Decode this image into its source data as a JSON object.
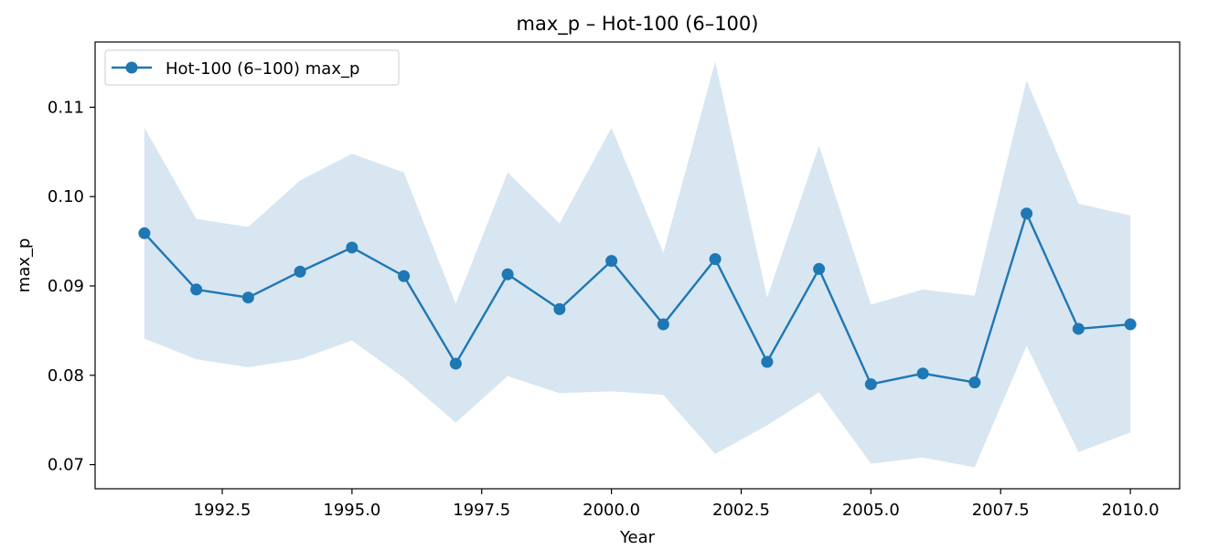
{
  "chart_data": {
    "type": "line",
    "title": "max_p – Hot-100 (6–100)",
    "xlabel": "Year",
    "ylabel": "max_p",
    "xlim": [
      1990.05,
      2010.95
    ],
    "ylim": [
      0.0673,
      0.1173
    ],
    "x_ticks": [
      1992.5,
      1995.0,
      1997.5,
      2000.0,
      2002.5,
      2005.0,
      2007.5,
      2010.0
    ],
    "x_tick_labels": [
      "1992.5",
      "1995.0",
      "1997.5",
      "2000.0",
      "2002.5",
      "2005.0",
      "2007.5",
      "2010.0"
    ],
    "y_ticks": [
      0.07,
      0.08,
      0.09,
      0.1,
      0.11
    ],
    "y_tick_labels": [
      "0.07",
      "0.08",
      "0.09",
      "0.10",
      "0.11"
    ],
    "grid": false,
    "legend_position": "upper left",
    "colors": {
      "line": "#1f77b4",
      "band": "#1f77b4",
      "band_opacity": 0.18
    },
    "x": [
      1991,
      1992,
      1993,
      1994,
      1995,
      1996,
      1997,
      1998,
      1999,
      2000,
      2001,
      2002,
      2003,
      2004,
      2005,
      2006,
      2007,
      2008,
      2009,
      2010
    ],
    "series": [
      {
        "name": "Hot-100 (6–100) max_p",
        "marker": "circle",
        "values": [
          0.0959,
          0.0896,
          0.0887,
          0.0916,
          0.0943,
          0.0911,
          0.0813,
          0.0913,
          0.0874,
          0.0928,
          0.0857,
          0.093,
          0.0815,
          0.0919,
          0.079,
          0.0802,
          0.0792,
          0.0981,
          0.0852,
          0.0857
        ],
        "band_upper": [
          0.1077,
          0.0975,
          0.0966,
          0.1018,
          0.1048,
          0.1027,
          0.088,
          0.1027,
          0.097,
          0.1077,
          0.0937,
          0.1151,
          0.0887,
          0.1057,
          0.0879,
          0.0896,
          0.0889,
          0.113,
          0.0992,
          0.0979
        ],
        "band_lower": [
          0.0841,
          0.0818,
          0.0809,
          0.0818,
          0.0839,
          0.0797,
          0.0747,
          0.0799,
          0.078,
          0.0782,
          0.0778,
          0.0712,
          0.0744,
          0.0781,
          0.0701,
          0.0708,
          0.0697,
          0.0833,
          0.0714,
          0.0736
        ]
      }
    ]
  }
}
